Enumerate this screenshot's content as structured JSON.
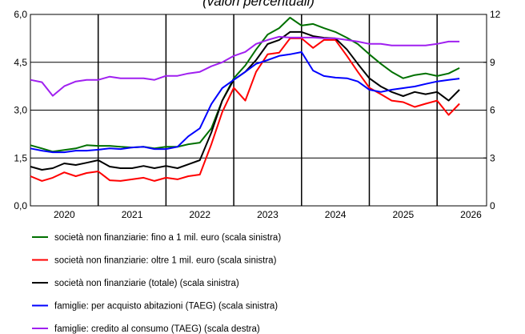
{
  "chart_data": {
    "type": "line",
    "title": "(valori percentuali)",
    "x": [
      2019.5,
      2019.67,
      2019.83,
      2020.0,
      2020.17,
      2020.33,
      2020.5,
      2020.67,
      2020.83,
      2021.0,
      2021.17,
      2021.33,
      2021.5,
      2021.67,
      2021.83,
      2022.0,
      2022.17,
      2022.33,
      2022.5,
      2022.67,
      2022.83,
      2023.0,
      2023.17,
      2023.33,
      2023.5,
      2023.67,
      2023.83,
      2024.0,
      2024.17,
      2024.33,
      2024.5,
      2024.67,
      2024.83,
      2025.0,
      2025.17,
      2025.33,
      2025.5,
      2025.67,
      2025.83
    ],
    "xlim": [
      2019.5,
      2026.23
    ],
    "xticks": [
      2020,
      2021,
      2022,
      2023,
      2024,
      2025,
      2026
    ],
    "ylim": [
      0,
      6
    ],
    "yticks": [
      {
        "value": 0,
        "label": "0,0"
      },
      {
        "value": 1.5,
        "label": "1,5"
      },
      {
        "value": 3,
        "label": "3,0"
      },
      {
        "value": 4.5,
        "label": "4,5"
      },
      {
        "value": 6,
        "label": "6,0"
      }
    ],
    "y2lim": [
      0,
      12
    ],
    "y2ticks": [
      0,
      3,
      6,
      9,
      12
    ],
    "grid": true,
    "series": [
      {
        "name": "società non finanziarie: fino a 1 mil. euro (scala sinistra)",
        "color": "#007000",
        "values": [
          1.9,
          1.8,
          1.7,
          1.75,
          1.8,
          1.9,
          1.88,
          1.88,
          1.85,
          1.83,
          1.85,
          1.8,
          1.85,
          1.85,
          1.93,
          1.98,
          2.43,
          3.3,
          4.0,
          4.4,
          4.9,
          5.37,
          5.57,
          5.9,
          5.65,
          5.7,
          5.57,
          5.45,
          5.27,
          5.07,
          4.75,
          4.45,
          4.2,
          4.0,
          4.1,
          4.15,
          4.07,
          4.15,
          4.32
        ]
      },
      {
        "name": "società non finanziarie: oltre 1 mil. euro (scala sinistra)",
        "color": "#ff0000",
        "values": [
          0.93,
          0.78,
          0.88,
          1.05,
          0.93,
          1.03,
          1.08,
          0.8,
          0.78,
          0.83,
          0.88,
          0.78,
          0.88,
          0.83,
          0.93,
          0.98,
          1.93,
          2.94,
          3.7,
          3.3,
          4.2,
          4.75,
          4.8,
          5.25,
          5.25,
          4.95,
          5.2,
          5.2,
          4.7,
          4.2,
          3.7,
          3.5,
          3.3,
          3.25,
          3.1,
          3.2,
          3.3,
          2.85,
          3.2
        ]
      },
      {
        "name": "società non finanziarie (totale) (scala sinistra)",
        "color": "#000000",
        "values": [
          1.23,
          1.13,
          1.18,
          1.33,
          1.28,
          1.35,
          1.43,
          1.23,
          1.18,
          1.18,
          1.25,
          1.18,
          1.25,
          1.18,
          1.3,
          1.43,
          2.3,
          3.3,
          3.95,
          4.2,
          4.57,
          5.07,
          5.2,
          5.45,
          5.45,
          5.32,
          5.27,
          5.25,
          4.9,
          4.45,
          4.0,
          3.74,
          3.57,
          3.44,
          3.57,
          3.5,
          3.57,
          3.3,
          3.64
        ]
      },
      {
        "name": "famiglie: per acquisto abitazioni (TAEG) (scala sinistra)",
        "color": "#0000ff",
        "values": [
          1.8,
          1.73,
          1.68,
          1.68,
          1.73,
          1.73,
          1.76,
          1.8,
          1.78,
          1.83,
          1.85,
          1.78,
          1.78,
          1.85,
          2.18,
          2.43,
          3.19,
          3.69,
          3.95,
          4.2,
          4.45,
          4.57,
          4.7,
          4.75,
          4.82,
          4.24,
          4.07,
          4.02,
          4.0,
          3.9,
          3.64,
          3.57,
          3.64,
          3.69,
          3.74,
          3.82,
          3.9,
          3.95,
          3.99
        ]
      },
      {
        "name": "famiglie: credito al consumo (TAEG) (scala destra)",
        "color": "#a020f0",
        "axis": "y2",
        "values": [
          7.9,
          7.75,
          6.9,
          7.5,
          7.8,
          7.9,
          7.9,
          8.1,
          8.0,
          8.0,
          8.0,
          7.9,
          8.15,
          8.15,
          8.3,
          8.4,
          8.75,
          9.0,
          9.4,
          9.65,
          10.15,
          10.4,
          10.6,
          10.55,
          10.55,
          10.55,
          10.5,
          10.5,
          10.4,
          10.3,
          10.15,
          10.15,
          10.05,
          10.05,
          10.05,
          10.05,
          10.15,
          10.3,
          10.3
        ]
      }
    ]
  }
}
